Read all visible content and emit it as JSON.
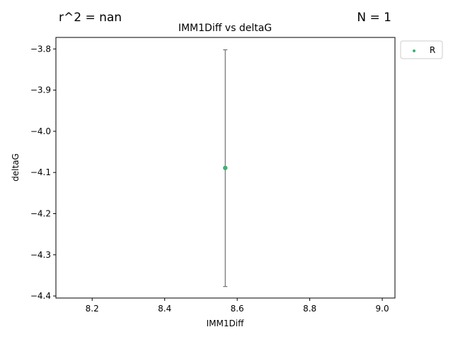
{
  "header": {
    "stat_left": "r^2 = nan",
    "stat_right": "N = 1"
  },
  "chart_data": {
    "type": "scatter",
    "title": "IMM1Diff vs deltaG",
    "xlabel": "IMM1Diff",
    "ylabel": "deltaG",
    "xlim": [
      8.1,
      9.035
    ],
    "ylim": [
      -4.405,
      -3.772
    ],
    "xticks": [
      8.2,
      8.4,
      8.6,
      8.8,
      9.0
    ],
    "xtick_labels": [
      "8.2",
      "8.4",
      "8.6",
      "8.8",
      "9.0"
    ],
    "yticks": [
      -3.8,
      -3.9,
      -4.0,
      -4.1,
      -4.2,
      -4.3,
      -4.4
    ],
    "ytick_labels": [
      "−3.8",
      "−3.9",
      "−4.0",
      "−4.1",
      "−4.2",
      "−4.3",
      "−4.4"
    ],
    "grid": false,
    "legend": {
      "position": "upper-right-outside",
      "entries": [
        "R"
      ]
    },
    "series": [
      {
        "name": "R",
        "color": "#3cb371",
        "points": [
          {
            "x": 8.567,
            "y": -4.089,
            "yerr_low": -4.377,
            "yerr_high": -3.802
          }
        ]
      }
    ],
    "errorbar_color": "#707070"
  }
}
